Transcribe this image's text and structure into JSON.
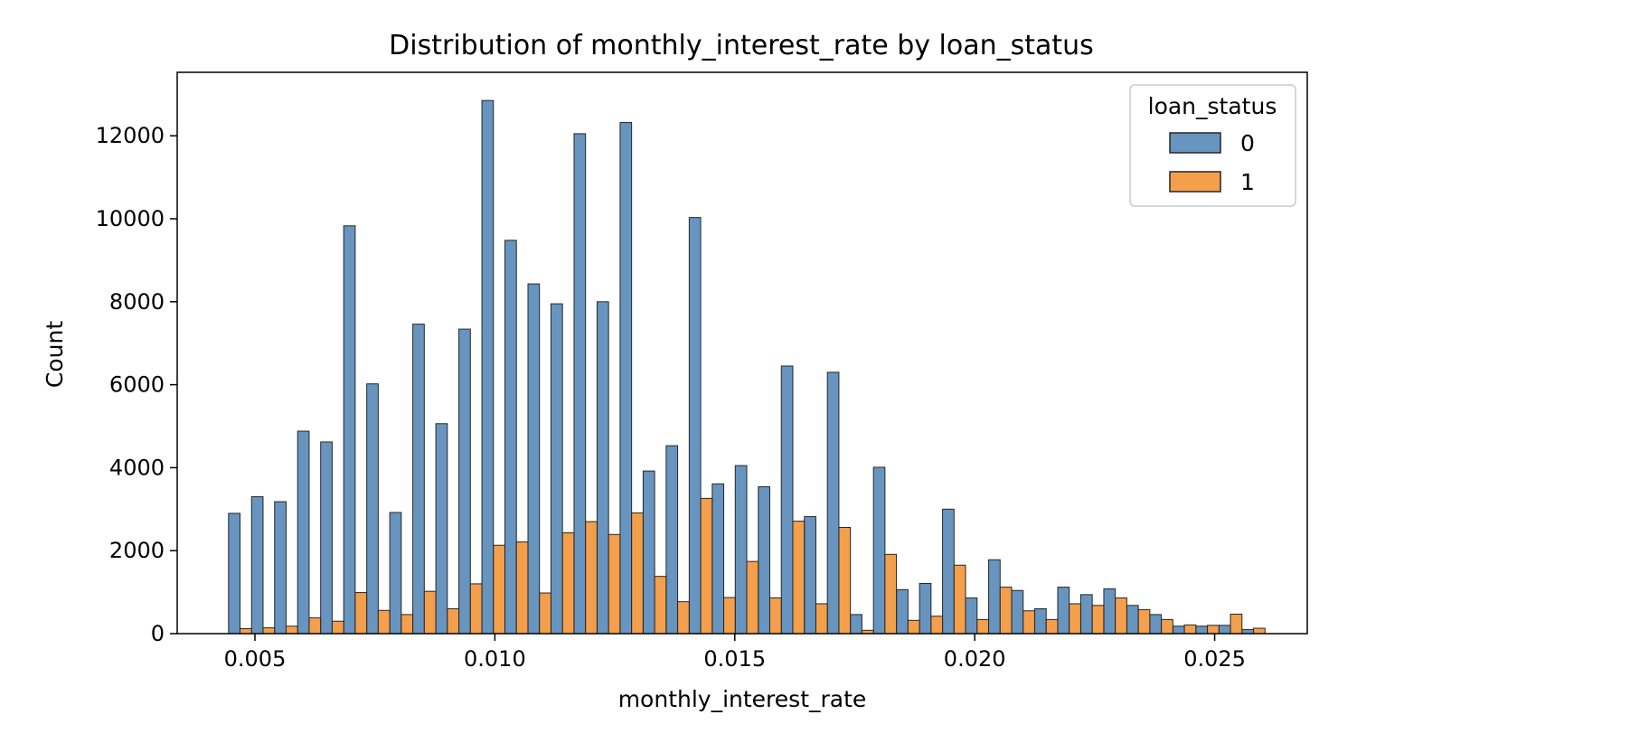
{
  "chart_data": {
    "type": "bar",
    "title": "Distribution of monthly_interest_rate by loan_status",
    "xlabel": "monthly_interest_rate",
    "ylabel": "Count",
    "xlim": [
      0.00338,
      0.02693
    ],
    "ylim": [
      0,
      13530
    ],
    "x_ticks": [
      0.005,
      0.01,
      0.015,
      0.02,
      0.025
    ],
    "x_tick_labels": [
      "0.005",
      "0.010",
      "0.015",
      "0.020",
      "0.025"
    ],
    "y_ticks": [
      0,
      2000,
      4000,
      6000,
      8000,
      10000,
      12000
    ],
    "y_tick_labels": [
      "0",
      "2000",
      "4000",
      "6000",
      "8000",
      "10000",
      "12000"
    ],
    "bin_width": 0.000479,
    "bin_starts": [
      0.00445,
      0.00493,
      0.00541,
      0.00589,
      0.00637,
      0.00685,
      0.00733,
      0.00781,
      0.00829,
      0.00877,
      0.00925,
      0.00973,
      0.01021,
      0.01069,
      0.01117,
      0.01165,
      0.01213,
      0.01261,
      0.01309,
      0.01357,
      0.01405,
      0.01453,
      0.01501,
      0.01549,
      0.01597,
      0.01645,
      0.01693,
      0.01741,
      0.01789,
      0.01837,
      0.01885,
      0.01933,
      0.01981,
      0.02029,
      0.02077,
      0.02125,
      0.02173,
      0.02221,
      0.02269,
      0.02317,
      0.02365,
      0.02413,
      0.02461,
      0.02509,
      0.02557
    ],
    "series": [
      {
        "name": "0",
        "color": "#4c82b4",
        "values": [
          2900,
          3300,
          3180,
          4880,
          4620,
          9830,
          6020,
          2920,
          7460,
          5060,
          7340,
          12850,
          9480,
          8430,
          7950,
          12050,
          8000,
          12320,
          3920,
          4530,
          10030,
          3610,
          4050,
          3540,
          6450,
          2820,
          6300,
          460,
          4010,
          1060,
          1210,
          3000,
          860,
          1780,
          1040,
          600,
          1120,
          940,
          1080,
          680,
          460,
          180,
          180,
          200,
          100
        ]
      },
      {
        "name": "1",
        "color": "#f28e2c",
        "values": [
          120,
          140,
          180,
          380,
          300,
          990,
          560,
          460,
          1020,
          600,
          1200,
          2130,
          2210,
          980,
          2430,
          2700,
          2390,
          2910,
          1380,
          770,
          3260,
          870,
          1740,
          860,
          2710,
          720,
          2560,
          80,
          1910,
          320,
          420,
          1650,
          340,
          1120,
          550,
          340,
          720,
          680,
          860,
          580,
          340,
          210,
          200,
          470,
          130
        ]
      }
    ],
    "legend": {
      "title": "loan_status",
      "entries": [
        "0",
        "1"
      ],
      "position": "top-right"
    },
    "grid": false
  }
}
